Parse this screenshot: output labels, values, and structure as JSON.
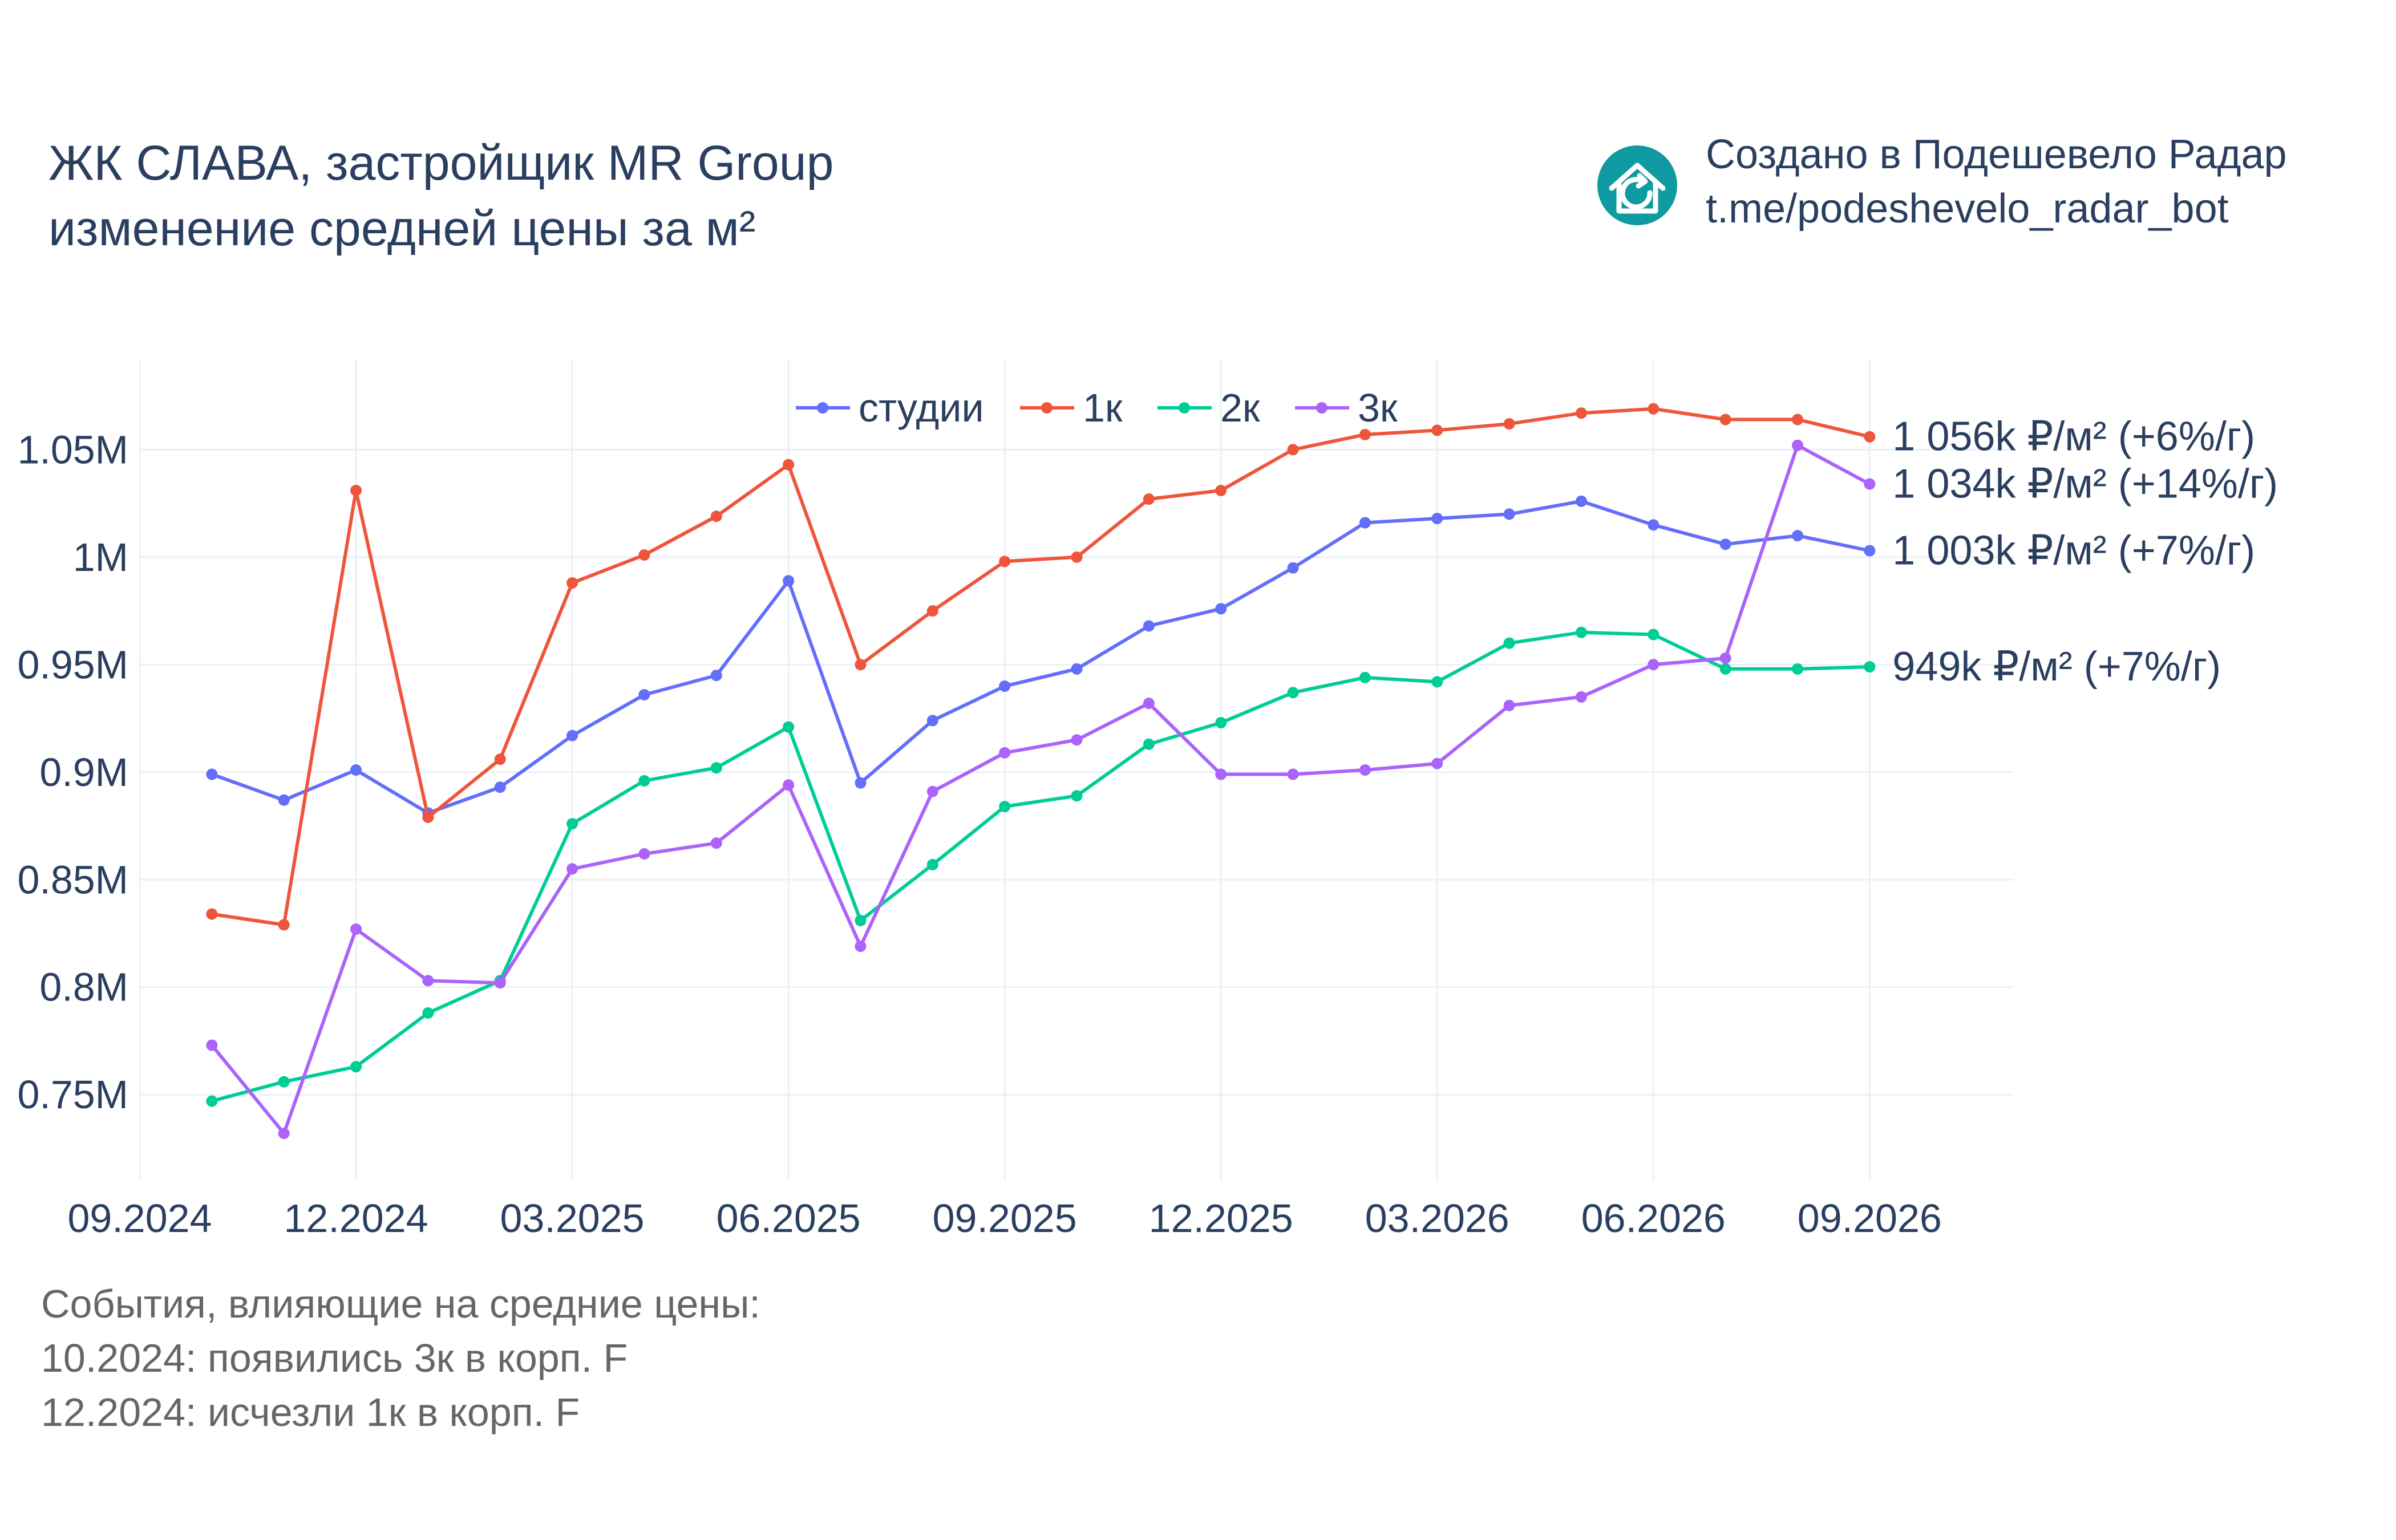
{
  "header": {
    "title_line1": "ЖК СЛАВА, застройщик MR Group",
    "title_line2": "изменение средней цены за м²"
  },
  "credit": {
    "line1": "Создано в Подешевело Радар",
    "line2": "t.me/podeshevelo_radar_bot",
    "logo_icon": "house-refresh-icon",
    "logo_color": "#0e9aa0"
  },
  "events": {
    "heading": "События, влияющие на средние цены:",
    "items": [
      "10.2024: появились 3к в корп. F",
      "12.2024: исчезли 1к в корп. F"
    ]
  },
  "chart_data": {
    "type": "line",
    "x": [
      "2024-10",
      "2024-11",
      "2024-12",
      "2025-01",
      "2025-02",
      "2025-03",
      "2025-04",
      "2025-05",
      "2025-06",
      "2025-07",
      "2025-08",
      "2025-09",
      "2025-10",
      "2025-11",
      "2025-12",
      "2026-01",
      "2026-02",
      "2026-03",
      "2026-04",
      "2026-05",
      "2026-06",
      "2026-07",
      "2026-08",
      "2026-09"
    ],
    "x_ticks": [
      {
        "date": "2024-09",
        "label": "09.2024"
      },
      {
        "date": "2024-12",
        "label": "12.2024"
      },
      {
        "date": "2025-03",
        "label": "03.2025"
      },
      {
        "date": "2025-06",
        "label": "06.2025"
      },
      {
        "date": "2025-09",
        "label": "09.2025"
      },
      {
        "date": "2025-12",
        "label": "12.2025"
      },
      {
        "date": "2026-03",
        "label": "03.2026"
      },
      {
        "date": "2026-06",
        "label": "06.2026"
      },
      {
        "date": "2026-09",
        "label": "09.2026"
      }
    ],
    "y_ticks": [
      {
        "value": 750000,
        "label": "0.75M"
      },
      {
        "value": 800000,
        "label": "0.8M"
      },
      {
        "value": 850000,
        "label": "0.85M"
      },
      {
        "value": 900000,
        "label": "0.9M"
      },
      {
        "value": 950000,
        "label": "0.95M"
      },
      {
        "value": 1000000,
        "label": "1M"
      },
      {
        "value": 1050000,
        "label": "1.05M"
      }
    ],
    "ylim": [
      710000,
      1092000
    ],
    "xlim": [
      "2024-09",
      "2026-11"
    ],
    "grid": true,
    "legend_position": "top-center",
    "series": [
      {
        "name": "студии",
        "color": "#636efa",
        "values": [
          899000,
          887000,
          901000,
          881000,
          893000,
          917000,
          936000,
          945000,
          989000,
          895000,
          924000,
          940000,
          948000,
          968000,
          976000,
          995000,
          1016000,
          1018000,
          1020000,
          1026000,
          1015000,
          1006000,
          1010000,
          1003000
        ],
        "end_label": "1 003k ₽/м² (+7%/г)"
      },
      {
        "name": "1к",
        "color": "#ef553b",
        "values": [
          834000,
          829000,
          1031000,
          879000,
          906000,
          988000,
          1001000,
          1019000,
          1043000,
          950000,
          975000,
          998000,
          1000000,
          1027000,
          1031000,
          1050000,
          1057000,
          1059000,
          1062000,
          1067000,
          1069000,
          1064000,
          1064000,
          1056000
        ],
        "end_label": "1 056k ₽/м² (+6%/г)"
      },
      {
        "name": "2к",
        "color": "#00cc96",
        "values": [
          747000,
          756000,
          763000,
          788000,
          803000,
          876000,
          896000,
          902000,
          921000,
          831000,
          857000,
          884000,
          889000,
          913000,
          923000,
          937000,
          944000,
          942000,
          960000,
          965000,
          964000,
          948000,
          948000,
          949000
        ],
        "end_label": "949k ₽/м² (+7%/г)"
      },
      {
        "name": "3к",
        "color": "#ab63fa",
        "values": [
          773000,
          732000,
          827000,
          803000,
          802000,
          855000,
          862000,
          867000,
          894000,
          819000,
          891000,
          909000,
          915000,
          932000,
          899000,
          899000,
          901000,
          904000,
          931000,
          935000,
          950000,
          953000,
          1052000,
          1034000
        ],
        "end_label": "1 034k ₽/м² (+14%/г)"
      }
    ]
  }
}
